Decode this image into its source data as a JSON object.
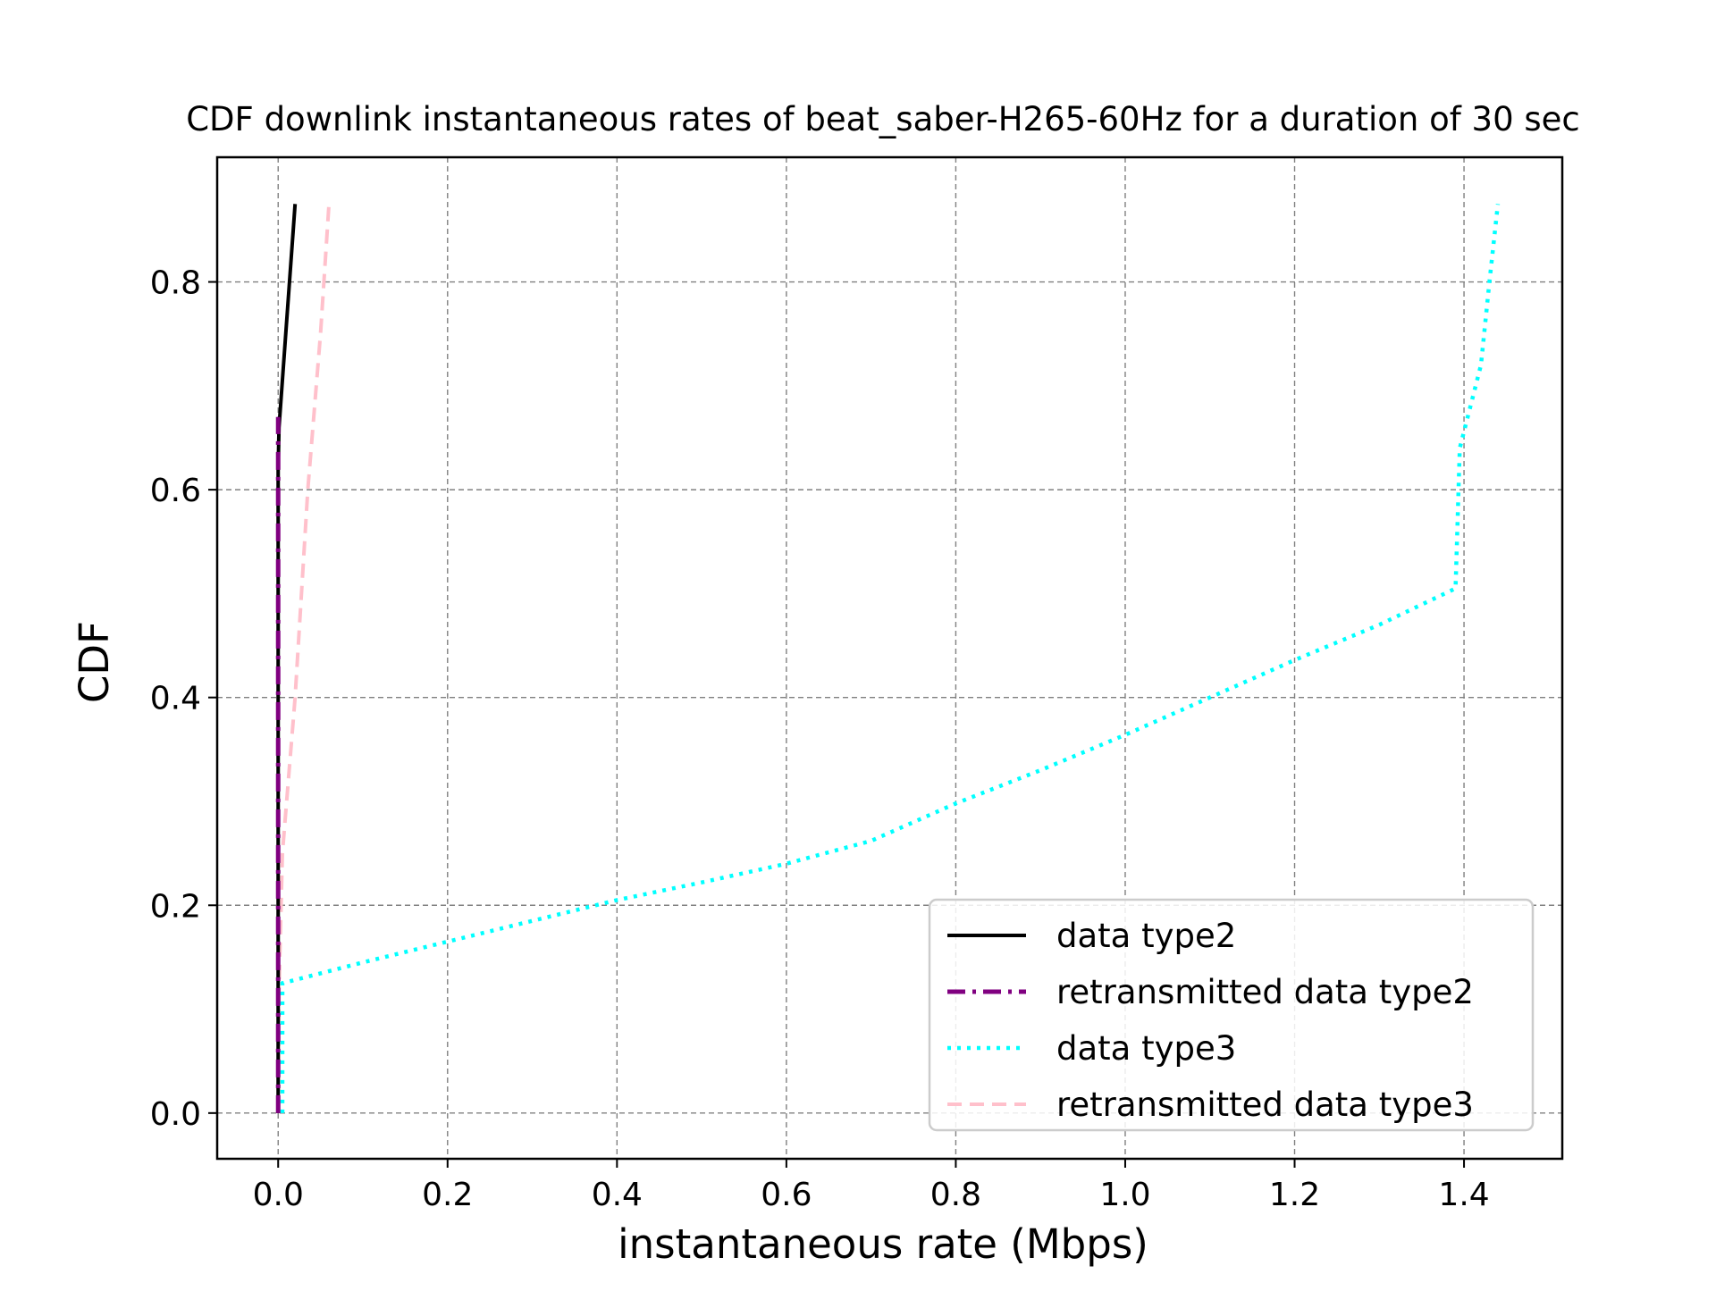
{
  "chart_data": {
    "type": "line",
    "title": "CDF downlink instantaneous rates of beat_saber-H265-60Hz for a duration of 30 sec",
    "xlabel": "instantaneous rate (Mbps)",
    "ylabel": "CDF",
    "xlim": [
      -0.072,
      1.516
    ],
    "ylim": [
      -0.044,
      0.92
    ],
    "xticks": [
      0.0,
      0.2,
      0.4,
      0.6,
      0.8,
      1.0,
      1.2,
      1.4
    ],
    "xtick_labels": [
      "0.0",
      "0.2",
      "0.4",
      "0.6",
      "0.8",
      "1.0",
      "1.2",
      "1.4"
    ],
    "yticks": [
      0.0,
      0.2,
      0.4,
      0.6,
      0.8
    ],
    "ytick_labels": [
      "0.0",
      "0.2",
      "0.4",
      "0.6",
      "0.8"
    ],
    "grid": true,
    "legend_position": "lower-right",
    "series": [
      {
        "name": "data type2",
        "color": "#000000",
        "style": "solid",
        "points": [
          [
            0.0,
            0.0
          ],
          [
            0.0,
            0.12
          ],
          [
            0.0,
            0.62
          ],
          [
            0.001,
            0.66
          ],
          [
            0.02,
            0.875
          ]
        ]
      },
      {
        "name": "retransmitted data type2",
        "color": "#800080",
        "style": "dashdot",
        "points": [
          [
            0.0,
            0.0
          ],
          [
            0.0,
            0.67
          ]
        ]
      },
      {
        "name": "data type3",
        "color": "#00ffff",
        "style": "dotted",
        "points": [
          [
            0.005,
            0.0
          ],
          [
            0.005,
            0.125
          ],
          [
            0.1,
            0.145
          ],
          [
            0.2,
            0.165
          ],
          [
            0.3,
            0.185
          ],
          [
            0.4,
            0.205
          ],
          [
            0.5,
            0.222
          ],
          [
            0.6,
            0.24
          ],
          [
            0.7,
            0.262
          ],
          [
            0.8,
            0.298
          ],
          [
            0.9,
            0.33
          ],
          [
            1.0,
            0.364
          ],
          [
            1.1,
            0.4
          ],
          [
            1.2,
            0.436
          ],
          [
            1.3,
            0.47
          ],
          [
            1.39,
            0.505
          ],
          [
            1.395,
            0.64
          ],
          [
            1.42,
            0.72
          ],
          [
            1.43,
            0.8
          ],
          [
            1.44,
            0.875
          ]
        ]
      },
      {
        "name": "retransmitted data type3",
        "color": "#ffc0cb",
        "style": "dashed",
        "points": [
          [
            0.0,
            0.0
          ],
          [
            0.001,
            0.12
          ],
          [
            0.005,
            0.25
          ],
          [
            0.02,
            0.4
          ],
          [
            0.035,
            0.6
          ],
          [
            0.05,
            0.75
          ],
          [
            0.06,
            0.875
          ]
        ]
      }
    ]
  }
}
